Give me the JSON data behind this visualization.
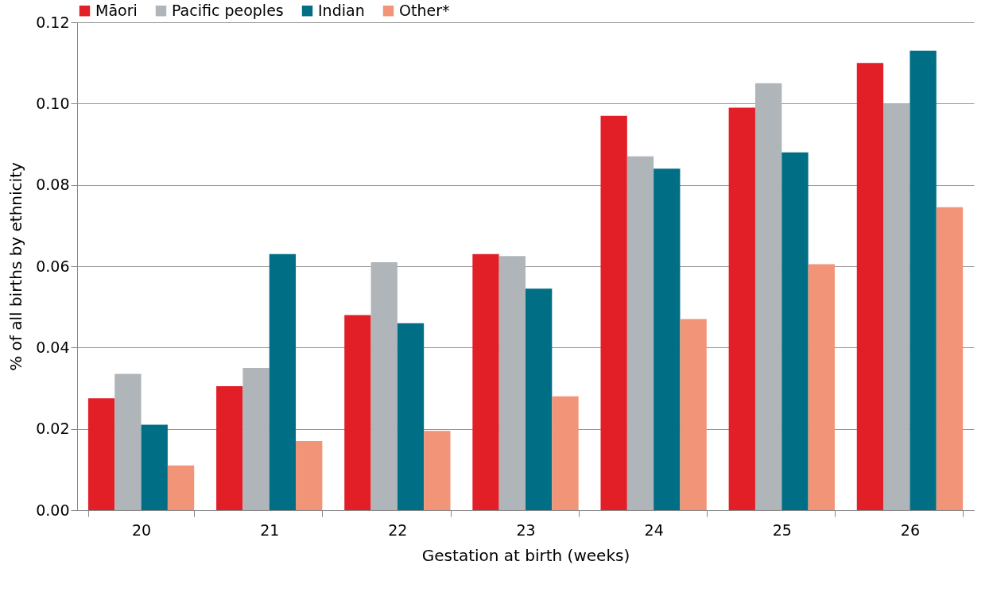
{
  "chart_data": {
    "type": "bar",
    "xlabel": "Gestation at birth (weeks)",
    "ylabel": "% of all births by ethnicity",
    "categories": [
      "20",
      "21",
      "22",
      "23",
      "24",
      "25",
      "26"
    ],
    "series": [
      {
        "name": "Māori",
        "color": "#e21e26",
        "values": [
          0.0275,
          0.0305,
          0.048,
          0.063,
          0.097,
          0.099,
          0.11
        ]
      },
      {
        "name": "Pacific peoples",
        "color": "#b0b5ba",
        "values": [
          0.0335,
          0.035,
          0.061,
          0.0625,
          0.087,
          0.105,
          0.1
        ]
      },
      {
        "name": "Indian",
        "color": "#006f85",
        "values": [
          0.021,
          0.063,
          0.046,
          0.0545,
          0.084,
          0.088,
          0.113
        ]
      },
      {
        "name": "Other*",
        "color": "#f19478",
        "values": [
          0.011,
          0.017,
          0.0195,
          0.028,
          0.047,
          0.0605,
          0.0745
        ]
      }
    ],
    "ylim": [
      0,
      0.12
    ],
    "yticks": [
      {
        "value": 0,
        "label": "0.00"
      },
      {
        "value": 0.02,
        "label": "0.02"
      },
      {
        "value": 0.04,
        "label": "0.04"
      },
      {
        "value": 0.06,
        "label": "0.06"
      },
      {
        "value": 0.08,
        "label": "0.08"
      },
      {
        "value": 0.1,
        "label": "0.10"
      },
      {
        "value": 0.12,
        "label": "0.12"
      }
    ],
    "grid": "y",
    "legend": "top"
  }
}
